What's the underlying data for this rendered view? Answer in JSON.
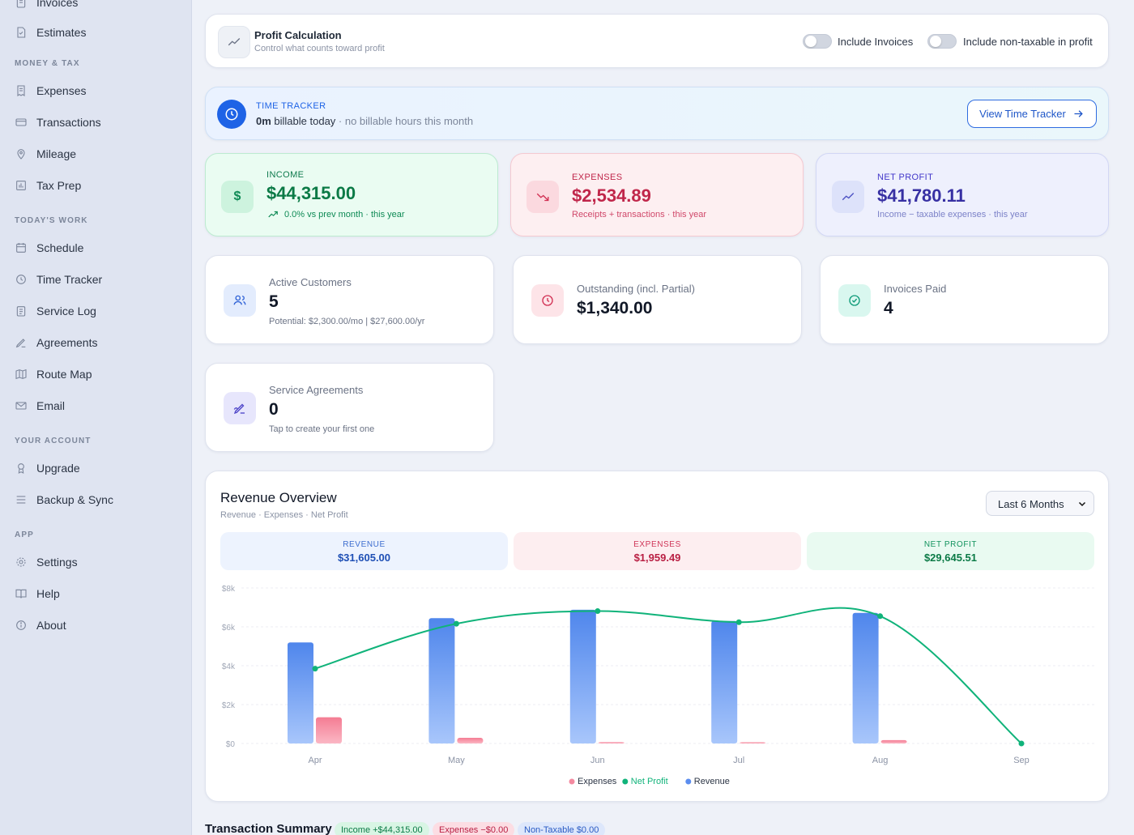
{
  "sidebar": {
    "items_top": [
      {
        "label": "Invoices",
        "icon": "invoice-icon"
      },
      {
        "label": "Estimates",
        "icon": "estimate-icon"
      }
    ],
    "sections": [
      {
        "title": "MONEY & TAX",
        "items": [
          {
            "label": "Expenses",
            "icon": "receipt-icon"
          },
          {
            "label": "Transactions",
            "icon": "card-icon"
          },
          {
            "label": "Mileage",
            "icon": "pin-icon"
          },
          {
            "label": "Tax Prep",
            "icon": "chart-icon"
          }
        ]
      },
      {
        "title": "TODAY'S WORK",
        "items": [
          {
            "label": "Schedule",
            "icon": "calendar-icon"
          },
          {
            "label": "Time Tracker",
            "icon": "clock-icon"
          },
          {
            "label": "Service Log",
            "icon": "log-icon"
          },
          {
            "label": "Agreements",
            "icon": "pen-icon"
          },
          {
            "label": "Route Map",
            "icon": "map-icon"
          },
          {
            "label": "Email",
            "icon": "mail-icon"
          }
        ]
      },
      {
        "title": "YOUR ACCOUNT",
        "items": [
          {
            "label": "Upgrade",
            "icon": "award-icon"
          },
          {
            "label": "Backup & Sync",
            "icon": "database-icon"
          }
        ]
      },
      {
        "title": "APP",
        "items": [
          {
            "label": "Settings",
            "icon": "gear-icon"
          },
          {
            "label": "Help",
            "icon": "book-icon"
          },
          {
            "label": "About",
            "icon": "info-icon"
          }
        ]
      }
    ]
  },
  "profit_calc": {
    "title": "Profit Calculation",
    "subtitle": "Control what counts toward profit",
    "toggle1": "Include Invoices",
    "toggle2": "Include non-taxable in profit"
  },
  "time_tracker": {
    "label": "TIME TRACKER",
    "duration": "0m",
    "text": " billable today",
    "note": " · no billable hours this month",
    "button": "View Time Tracker"
  },
  "income": {
    "label": "INCOME",
    "value": "$44,315.00",
    "sub": "0.0% vs prev month · this year"
  },
  "expenses": {
    "label": "EXPENSES",
    "value": "$2,534.89",
    "sub": "Receipts + transactions · this year"
  },
  "net_profit": {
    "label": "NET PROFIT",
    "value": "$41,780.11",
    "sub": "Income − taxable expenses · this year"
  },
  "active_customers": {
    "label": "Active Customers",
    "value": "5",
    "sub": "Potential: $2,300.00/mo | $27,600.00/yr"
  },
  "outstanding": {
    "label": "Outstanding (incl. Partial)",
    "value": "$1,340.00"
  },
  "invoices_paid": {
    "label": "Invoices Paid",
    "value": "4"
  },
  "service_agreements": {
    "label": "Service Agreements",
    "value": "0",
    "sub": "Tap to create your first one"
  },
  "revenue_overview": {
    "title": "Revenue Overview",
    "subtitle": "Revenue · Expenses · Net Profit",
    "range_select": "Last 6 Months",
    "summary": [
      {
        "label": "REVENUE",
        "value": "$31,605.00"
      },
      {
        "label": "EXPENSES",
        "value": "$1,959.49"
      },
      {
        "label": "NET PROFIT",
        "value": "$29,645.51"
      }
    ]
  },
  "chart_data": {
    "type": "bar",
    "categories": [
      "Apr",
      "May",
      "Jun",
      "Jul",
      "Aug",
      "Sep"
    ],
    "y_ticks": [
      "$0",
      "$2k",
      "$4k",
      "$6k",
      "$8k"
    ],
    "ylim": [
      0,
      8000
    ],
    "series": [
      {
        "name": "Revenue",
        "type": "bar",
        "color": "#5b8def",
        "values": [
          5200,
          6450,
          6880,
          6300,
          6720,
          0
        ]
      },
      {
        "name": "Expenses",
        "type": "bar",
        "color": "#f48aa0",
        "values": [
          1350,
          290,
          70,
          60,
          170,
          0
        ]
      },
      {
        "name": "Net Profit",
        "type": "line",
        "color": "#10b37a",
        "values": [
          3850,
          6160,
          6810,
          6240,
          6550,
          0
        ]
      }
    ],
    "legend": [
      "Expenses",
      "Net Profit",
      "Revenue"
    ],
    "legend_position": "bottom"
  },
  "transaction_summary": {
    "title": "Transaction Summary",
    "income": "Income +$44,315.00",
    "expenses": "Expenses −$0.00",
    "non_taxable": "Non-Taxable $0.00"
  }
}
